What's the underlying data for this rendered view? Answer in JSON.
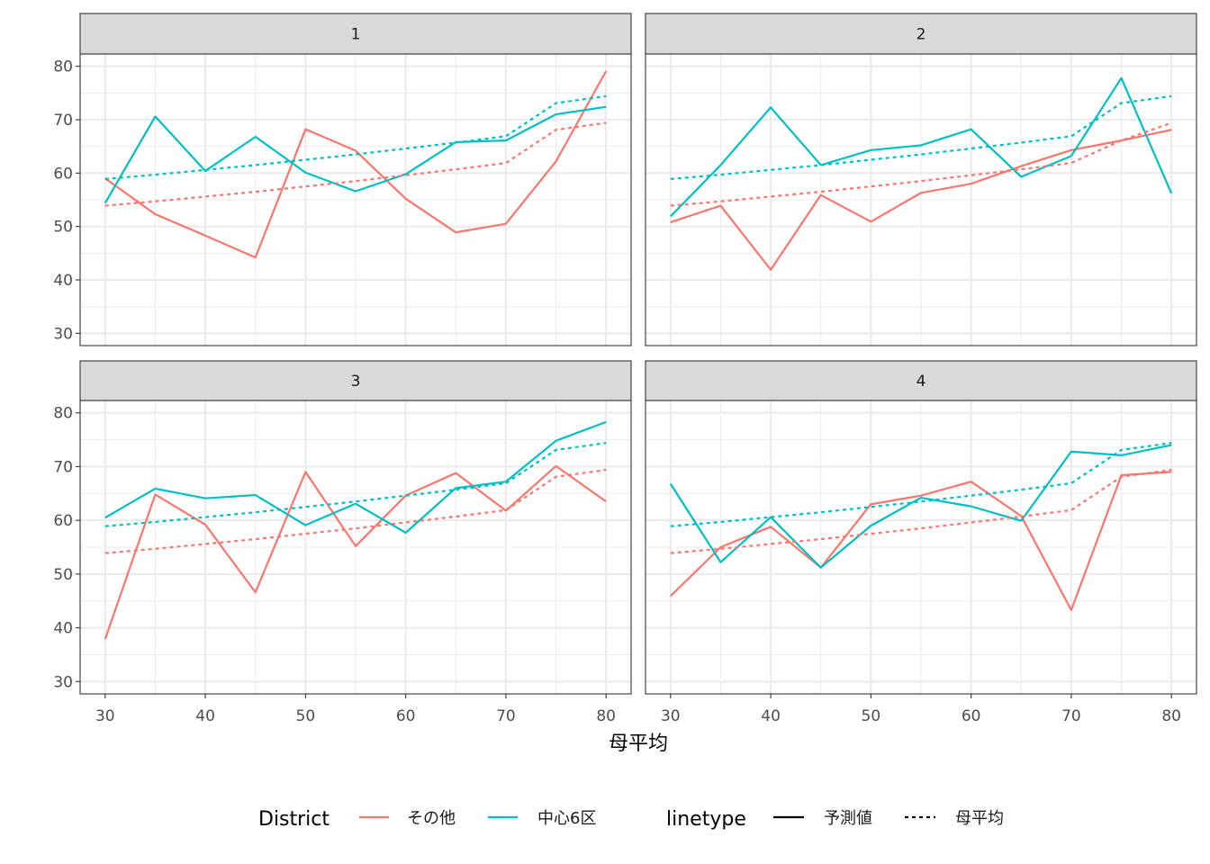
{
  "chart_data": {
    "type": "line",
    "xlabel": "母平均",
    "ylabel": "",
    "xlim": [
      27.5,
      82.5
    ],
    "ylim": [
      27.7,
      82.3
    ],
    "x_ticks": [
      30,
      40,
      50,
      60,
      70,
      80
    ],
    "y_ticks": [
      30,
      40,
      50,
      60,
      70,
      80
    ],
    "x_minor": [
      35,
      45,
      55,
      65,
      75
    ],
    "y_minor": [
      35,
      45,
      55,
      65,
      75
    ],
    "grid": true,
    "legend_position": "bottom",
    "colors": {
      "その他": "#F8766D",
      "中心6区": "#00BFC4"
    },
    "legend": {
      "district_title": "District",
      "district_items": [
        "その他",
        "中心6区"
      ],
      "linetype_title": "linetype",
      "linetype_items": [
        "予測値",
        "母平均"
      ]
    },
    "x": [
      30,
      35,
      40,
      45,
      50,
      55,
      60,
      65,
      70,
      75,
      80
    ],
    "panels": [
      {
        "strip": "1",
        "series": [
          {
            "district": "その他",
            "linetype": "予測値",
            "values": [
              59.0,
              52.3,
              48.3,
              44.2,
              68.2,
              64.2,
              55.2,
              48.9,
              50.5,
              62.2,
              79.1
            ]
          },
          {
            "district": "中心6区",
            "linetype": "予測値",
            "values": [
              54.4,
              70.6,
              60.4,
              66.8,
              60.1,
              56.6,
              59.8,
              65.8,
              66.1,
              71.0,
              72.4
            ]
          },
          {
            "district": "その他",
            "linetype": "母平均",
            "values": [
              53.9,
              54.7,
              55.6,
              56.5,
              57.5,
              58.5,
              59.6,
              60.7,
              61.9,
              68.1,
              69.4
            ]
          },
          {
            "district": "中心6区",
            "linetype": "母平均",
            "values": [
              58.9,
              59.7,
              60.6,
              61.5,
              62.5,
              63.5,
              64.6,
              65.7,
              66.9,
              73.1,
              74.4
            ]
          }
        ]
      },
      {
        "strip": "2",
        "series": [
          {
            "district": "その他",
            "linetype": "予測値",
            "values": [
              50.8,
              53.9,
              41.9,
              55.9,
              50.9,
              56.3,
              58.0,
              61.3,
              64.3,
              66.1,
              68.1
            ]
          },
          {
            "district": "中心6区",
            "linetype": "予測値",
            "values": [
              51.9,
              61.5,
              72.3,
              61.5,
              64.3,
              65.2,
              68.2,
              59.3,
              63.2,
              77.8,
              56.2
            ]
          },
          {
            "district": "その他",
            "linetype": "母平均",
            "values": [
              53.9,
              54.7,
              55.6,
              56.5,
              57.5,
              58.5,
              59.6,
              60.7,
              61.9,
              66.1,
              69.4
            ]
          },
          {
            "district": "中心6区",
            "linetype": "母平均",
            "values": [
              58.9,
              59.7,
              60.6,
              61.5,
              62.5,
              63.5,
              64.6,
              65.7,
              66.9,
              73.1,
              74.4
            ]
          }
        ]
      },
      {
        "strip": "3",
        "series": [
          {
            "district": "その他",
            "linetype": "予測値",
            "values": [
              37.9,
              64.8,
              59.2,
              46.6,
              69.0,
              55.2,
              64.6,
              68.8,
              61.8,
              70.1,
              63.5
            ]
          },
          {
            "district": "中心6区",
            "linetype": "予測値",
            "values": [
              60.5,
              65.9,
              64.1,
              64.7,
              59.1,
              63.1,
              57.7,
              66.0,
              67.2,
              74.8,
              78.3
            ]
          },
          {
            "district": "その他",
            "linetype": "母平均",
            "values": [
              53.9,
              54.7,
              55.6,
              56.5,
              57.5,
              58.5,
              59.6,
              60.7,
              61.9,
              68.1,
              69.4
            ]
          },
          {
            "district": "中心6区",
            "linetype": "母平均",
            "values": [
              58.9,
              59.7,
              60.6,
              61.5,
              62.5,
              63.5,
              64.6,
              65.7,
              66.9,
              73.1,
              74.4
            ]
          }
        ]
      },
      {
        "strip": "4",
        "series": [
          {
            "district": "その他",
            "linetype": "予測値",
            "values": [
              45.9,
              55.0,
              58.8,
              51.2,
              63.0,
              64.6,
              67.2,
              60.8,
              43.3,
              68.4,
              69.0
            ]
          },
          {
            "district": "中心6区",
            "linetype": "予測値",
            "values": [
              66.8,
              52.2,
              60.6,
              51.2,
              59.0,
              64.2,
              62.6,
              59.9,
              72.8,
              72.1,
              74.0
            ]
          },
          {
            "district": "その他",
            "linetype": "母平均",
            "values": [
              53.9,
              54.7,
              55.6,
              56.5,
              57.5,
              58.5,
              59.6,
              60.7,
              61.9,
              68.1,
              69.4
            ]
          },
          {
            "district": "中心6区",
            "linetype": "母平均",
            "values": [
              58.9,
              59.7,
              60.6,
              61.5,
              62.5,
              63.5,
              64.6,
              65.7,
              66.9,
              73.1,
              74.4
            ]
          }
        ]
      }
    ]
  }
}
